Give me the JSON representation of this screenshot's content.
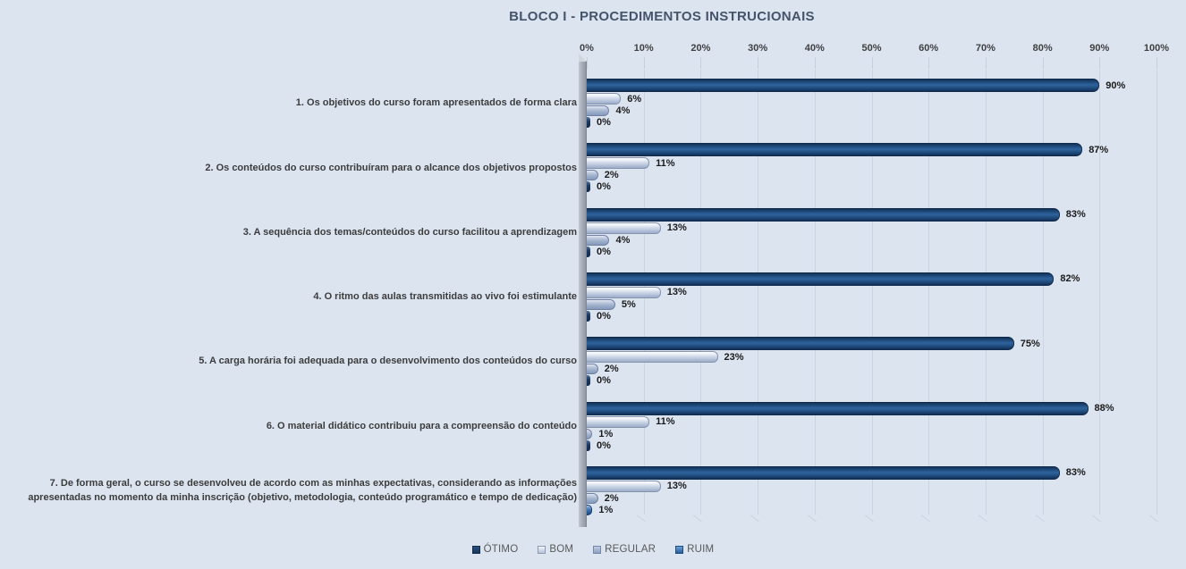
{
  "chart_data": {
    "type": "bar",
    "orientation": "horizontal",
    "title": "BLOCO I - PROCEDIMENTOS  INSTRUCIONAIS",
    "title_color": "#44546a",
    "background_color": "#dce4f0",
    "grid": true,
    "legend_position": "bottom",
    "data_labels": "percent",
    "x_axis": {
      "min": 0,
      "max": 100,
      "tick_step": 10,
      "tick_labels": [
        "0%",
        "10%",
        "20%",
        "30%",
        "40%",
        "50%",
        "60%",
        "70%",
        "80%",
        "90%",
        "100%"
      ]
    },
    "categories": [
      "1. Os objetivos do curso foram apresentados de forma clara",
      "2. Os conteúdos do curso contribuíram para o alcance dos objetivos propostos",
      "3. A sequência dos temas/conteúdos do curso facilitou a aprendizagem",
      "4. O ritmo das aulas transmitidas ao vivo foi estimulante",
      "5. A carga horária foi adequada para o desenvolvimento dos conteúdos do curso",
      "6. O material didático contribuiu para a compreensão do conteúdo",
      "7. De forma geral, o curso se desenvolveu de acordo com as minhas expectativas, considerando as informações apresentadas no momento da minha inscrição (objetivo, metodologia, conteúdo programático e tempo de dedicação)"
    ],
    "series": [
      {
        "name": "ÓTIMO",
        "color": "#1f4e79",
        "values": [
          90,
          87,
          83,
          82,
          75,
          88,
          83
        ]
      },
      {
        "name": "BOM",
        "color": "#c9d3e4",
        "values": [
          6,
          11,
          13,
          13,
          23,
          11,
          13
        ]
      },
      {
        "name": "REGULAR",
        "color": "#93a5c6",
        "values": [
          4,
          2,
          4,
          5,
          2,
          1,
          2
        ]
      },
      {
        "name": "RUIM",
        "color": "#2e6da8",
        "values": [
          0,
          0,
          0,
          0,
          0,
          0,
          1
        ]
      }
    ]
  }
}
